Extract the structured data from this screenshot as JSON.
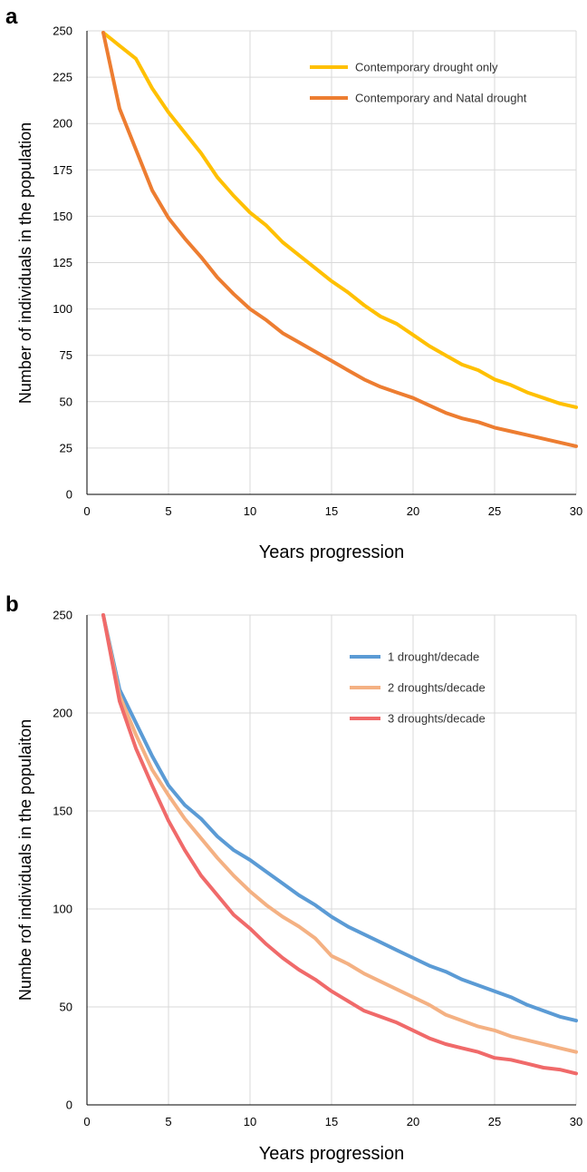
{
  "chart_data": [
    {
      "panel_label": "a",
      "type": "line",
      "xlabel": "Years progression",
      "ylabel": "Number of individuals in the population",
      "xlim": [
        0,
        30
      ],
      "ylim": [
        0,
        250
      ],
      "xticks": [
        0,
        5,
        10,
        15,
        20,
        25,
        30
      ],
      "yticks": [
        0,
        25,
        50,
        75,
        100,
        125,
        150,
        175,
        200,
        225,
        250
      ],
      "grid": true,
      "legend_position": "top-right",
      "x": [
        1,
        2,
        3,
        4,
        5,
        6,
        7,
        8,
        9,
        10,
        11,
        12,
        13,
        14,
        15,
        16,
        17,
        18,
        19,
        20,
        21,
        22,
        23,
        24,
        25,
        26,
        27,
        28,
        29,
        30
      ],
      "series": [
        {
          "name": "Contemporary drought only",
          "color": "#FFC000",
          "values": [
            249,
            242,
            235,
            219,
            206,
            195,
            184,
            171,
            161,
            152,
            145,
            136,
            129,
            122,
            115,
            109,
            102,
            96,
            92,
            86,
            80,
            75,
            70,
            67,
            62,
            59,
            55,
            52,
            49,
            47
          ]
        },
        {
          "name": "Contemporary and Natal drought",
          "color": "#ED7D31",
          "values": [
            249,
            208,
            186,
            164,
            149,
            138,
            128,
            117,
            108,
            100,
            94,
            87,
            82,
            77,
            72,
            67,
            62,
            58,
            55,
            52,
            48,
            44,
            41,
            39,
            36,
            34,
            32,
            30,
            28,
            26
          ]
        }
      ]
    },
    {
      "panel_label": "b",
      "type": "line",
      "xlabel": "Years progression",
      "ylabel": "Numbe rof individuals in the populaiton",
      "xlim": [
        0,
        30
      ],
      "ylim": [
        0,
        250
      ],
      "xticks": [
        0,
        5,
        10,
        15,
        20,
        25,
        30
      ],
      "yticks": [
        0,
        50,
        100,
        150,
        200,
        250
      ],
      "grid": true,
      "legend_position": "top-right",
      "x": [
        1,
        2,
        3,
        4,
        5,
        6,
        7,
        8,
        9,
        10,
        11,
        12,
        13,
        14,
        15,
        16,
        17,
        18,
        19,
        20,
        21,
        22,
        23,
        24,
        25,
        26,
        27,
        28,
        29,
        30
      ],
      "series": [
        {
          "name": "1 drought/decade",
          "color": "#5B9BD5",
          "values": [
            250,
            212,
            195,
            178,
            163,
            153,
            146,
            137,
            130,
            125,
            119,
            113,
            107,
            102,
            96,
            91,
            87,
            83,
            79,
            75,
            71,
            68,
            64,
            61,
            58,
            55,
            51,
            48,
            45,
            43
          ]
        },
        {
          "name": "2 droughts/decade",
          "color": "#F4B183",
          "values": [
            250,
            209,
            189,
            171,
            158,
            146,
            136,
            126,
            117,
            109,
            102,
            96,
            91,
            85,
            76,
            72,
            67,
            63,
            59,
            55,
            51,
            46,
            43,
            40,
            38,
            35,
            33,
            31,
            29,
            27
          ]
        },
        {
          "name": "3 droughts/decade",
          "color": "#F06A6A",
          "values": [
            250,
            206,
            182,
            163,
            145,
            130,
            117,
            107,
            97,
            90,
            82,
            75,
            69,
            64,
            58,
            53,
            48,
            45,
            42,
            38,
            34,
            31,
            29,
            27,
            24,
            23,
            21,
            19,
            18,
            16
          ]
        }
      ]
    }
  ]
}
